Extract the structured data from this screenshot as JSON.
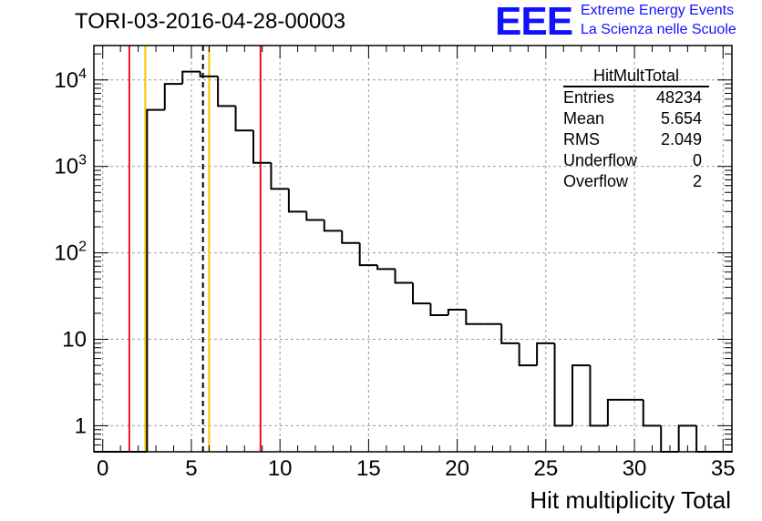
{
  "title": "TORI-03-2016-04-28-00003",
  "logo": {
    "mark": "EEE",
    "line1": "Extreme Energy Events",
    "line2": "La Scienza nelle Scuole",
    "color": "#1111ff"
  },
  "stats_box": {
    "name": "HitMultTotal",
    "rows": [
      {
        "label": "Entries",
        "value": "48234"
      },
      {
        "label": "Mean",
        "value": "5.654"
      },
      {
        "label": "RMS",
        "value": "2.049"
      },
      {
        "label": "Underflow",
        "value": "0"
      },
      {
        "label": "Overflow",
        "value": "2"
      }
    ]
  },
  "chart_data": {
    "type": "histogram",
    "title": "TORI-03-2016-04-28-00003",
    "xlabel": "Hit multiplicity Total",
    "ylabel": "",
    "yscale": "log",
    "xlim": [
      -0.5,
      35.5
    ],
    "ylim": [
      0.5,
      25000
    ],
    "grid": true,
    "bin_width": 1,
    "bin_low_edges": [
      -0.5,
      0.5,
      1.5,
      2.5,
      3.5,
      4.5,
      5.5,
      6.5,
      7.5,
      8.5,
      9.5,
      10.5,
      11.5,
      12.5,
      13.5,
      14.5,
      15.5,
      16.5,
      17.5,
      18.5,
      19.5,
      20.5,
      21.5,
      22.5,
      23.5,
      24.5,
      25.5,
      26.5,
      27.5,
      28.5,
      29.5,
      30.5,
      31.5,
      32.5,
      33.5,
      34.5
    ],
    "counts": [
      0,
      0,
      0,
      4500,
      9000,
      12500,
      11000,
      5000,
      2600,
      1100,
      550,
      300,
      240,
      180,
      130,
      72,
      65,
      45,
      26,
      19,
      22,
      15,
      15,
      9,
      5,
      9,
      1,
      5,
      1,
      2,
      2,
      1,
      0,
      1,
      0,
      0
    ],
    "xticks": [
      0,
      5,
      10,
      15,
      20,
      25,
      30,
      35
    ],
    "yticks": [
      {
        "value": 1,
        "label": "1"
      },
      {
        "value": 10,
        "label": "10"
      },
      {
        "value": 100,
        "label": "10^2"
      },
      {
        "value": 1000,
        "label": "10^3"
      },
      {
        "value": 10000,
        "label": "10^4"
      }
    ],
    "vlines": [
      {
        "x": 1.5,
        "color": "#e8141e",
        "style": "solid"
      },
      {
        "x": 2.4,
        "color": "#f5c400",
        "style": "solid"
      },
      {
        "x": 5.654,
        "color": "#000000",
        "style": "dashed"
      },
      {
        "x": 6.0,
        "color": "#f5c400",
        "style": "solid"
      },
      {
        "x": 8.9,
        "color": "#e8141e",
        "style": "solid"
      }
    ],
    "line_color": "#000000"
  }
}
